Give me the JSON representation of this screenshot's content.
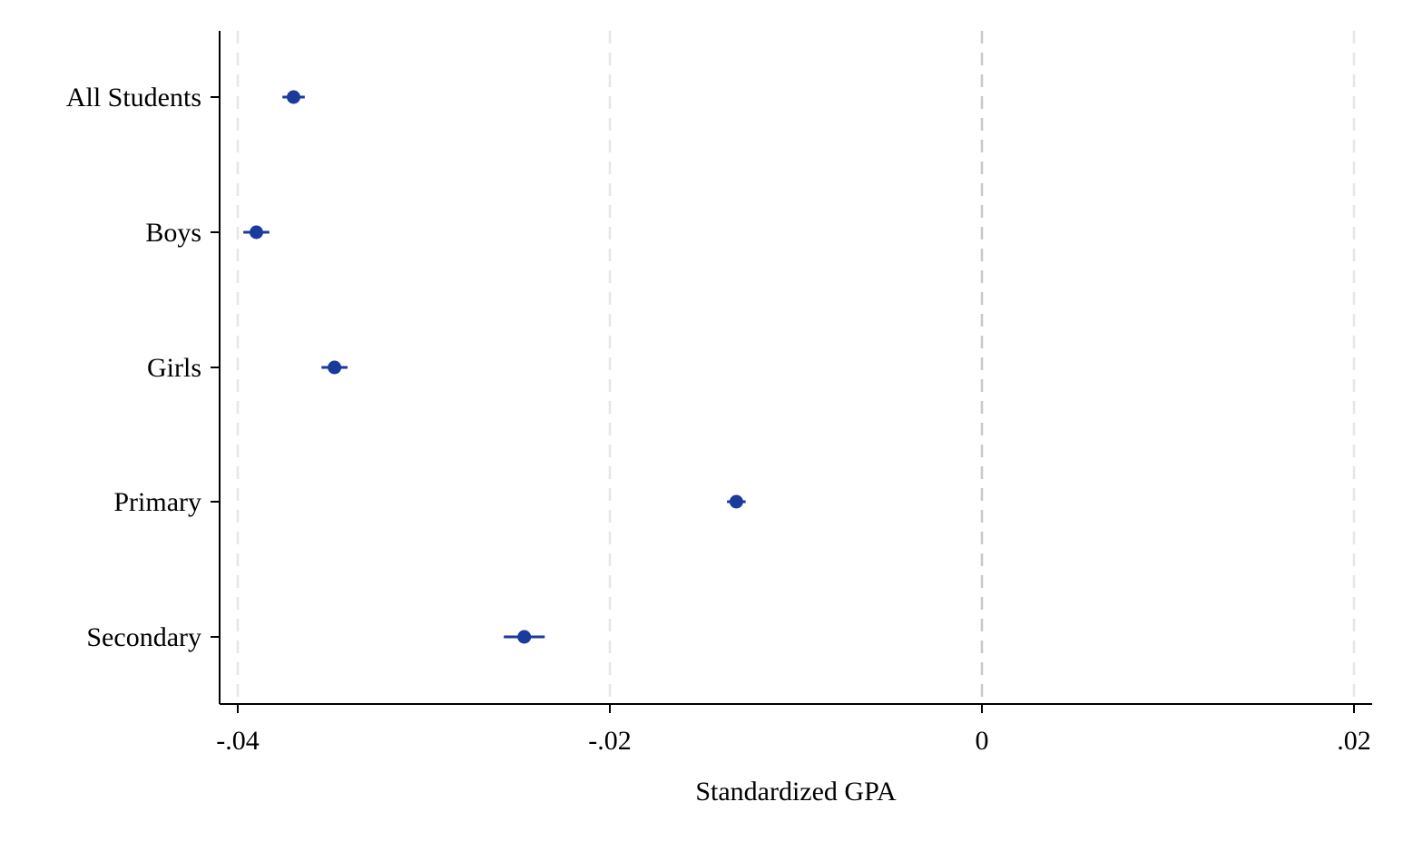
{
  "chart_data": {
    "type": "scatter",
    "subtype": "coefficient-plot",
    "orientation": "horizontal",
    "title": "",
    "xlabel": "Standardized GPA",
    "ylabel": "",
    "xlim": [
      -0.04,
      0.02
    ],
    "x_ticks": [
      -0.04,
      -0.02,
      0,
      0.02
    ],
    "x_tick_labels": [
      "-.04",
      "-.02",
      "0",
      ".02"
    ],
    "categories": [
      "All Students",
      "Boys",
      "Girls",
      "Primary",
      "Secondary"
    ],
    "series": [
      {
        "points": [
          {
            "category": "All Students",
            "estimate": -0.037,
            "ci_low": -0.0376,
            "ci_high": -0.0364
          },
          {
            "category": "Boys",
            "estimate": -0.039,
            "ci_low": -0.0397,
            "ci_high": -0.0383
          },
          {
            "category": "Girls",
            "estimate": -0.0348,
            "ci_low": -0.0355,
            "ci_high": -0.0341
          },
          {
            "category": "Primary",
            "estimate": -0.0132,
            "ci_low": -0.0137,
            "ci_high": -0.0127
          },
          {
            "category": "Secondary",
            "estimate": -0.0246,
            "ci_low": -0.0257,
            "ci_high": -0.0235
          }
        ]
      }
    ],
    "reference_lines_x": [
      -0.04,
      -0.02,
      0,
      0.02
    ],
    "grid": true,
    "legend": "none",
    "colors": {
      "marker": "#1a3a9c",
      "ci": "#1a3a9c",
      "gridline": "#e6e6e6",
      "zero_line": "#c8c8c8",
      "axis": "#000000"
    }
  }
}
